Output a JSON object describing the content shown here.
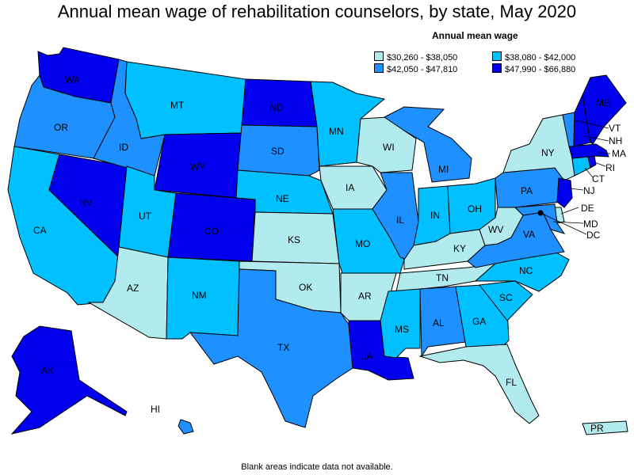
{
  "title": "Annual mean wage of rehabilitation counselors, by state, May 2020",
  "legend": {
    "title": "Annual mean wage",
    "items": [
      {
        "range": "$30,260 - $38,050",
        "color": "#b2ebee"
      },
      {
        "range": "$38,080 - $42,000",
        "color": "#00c0ff"
      },
      {
        "range": "$42,050 - $47,810",
        "color": "#1e90ff"
      },
      {
        "range": "$47,990 - $66,880",
        "color": "#0000ee"
      }
    ]
  },
  "states": {
    "WA": "4",
    "OR": "3",
    "CA": "2",
    "NV": "4",
    "ID": "3",
    "MT": "2",
    "WY": "4",
    "UT": "2",
    "CO": "4",
    "AZ": "1",
    "NM": "2",
    "ND": "4",
    "SD": "3",
    "NE": "2",
    "KS": "1",
    "OK": "1",
    "TX": "3",
    "MN": "2",
    "IA": "1",
    "MO": "2",
    "AR": "1",
    "LA": "4",
    "WI": "1",
    "IL": "3",
    "MI": "3",
    "IN": "2",
    "OH": "2",
    "KY": "1",
    "TN": "1",
    "MS": "2",
    "AL": "3",
    "GA": "2",
    "FL": "1",
    "SC": "2",
    "NC": "2",
    "VA": "3",
    "WV": "1",
    "PA": "3",
    "NY": "1",
    "VT": "3",
    "NH": "4",
    "ME": "4",
    "MA": "4",
    "RI": "4",
    "CT": "2",
    "NJ": "4",
    "DE": "1",
    "MD": "3",
    "DC": "4",
    "AK": "4",
    "HI": "3",
    "PR": "1"
  },
  "footnote": "Blank areas indicate data not available."
}
